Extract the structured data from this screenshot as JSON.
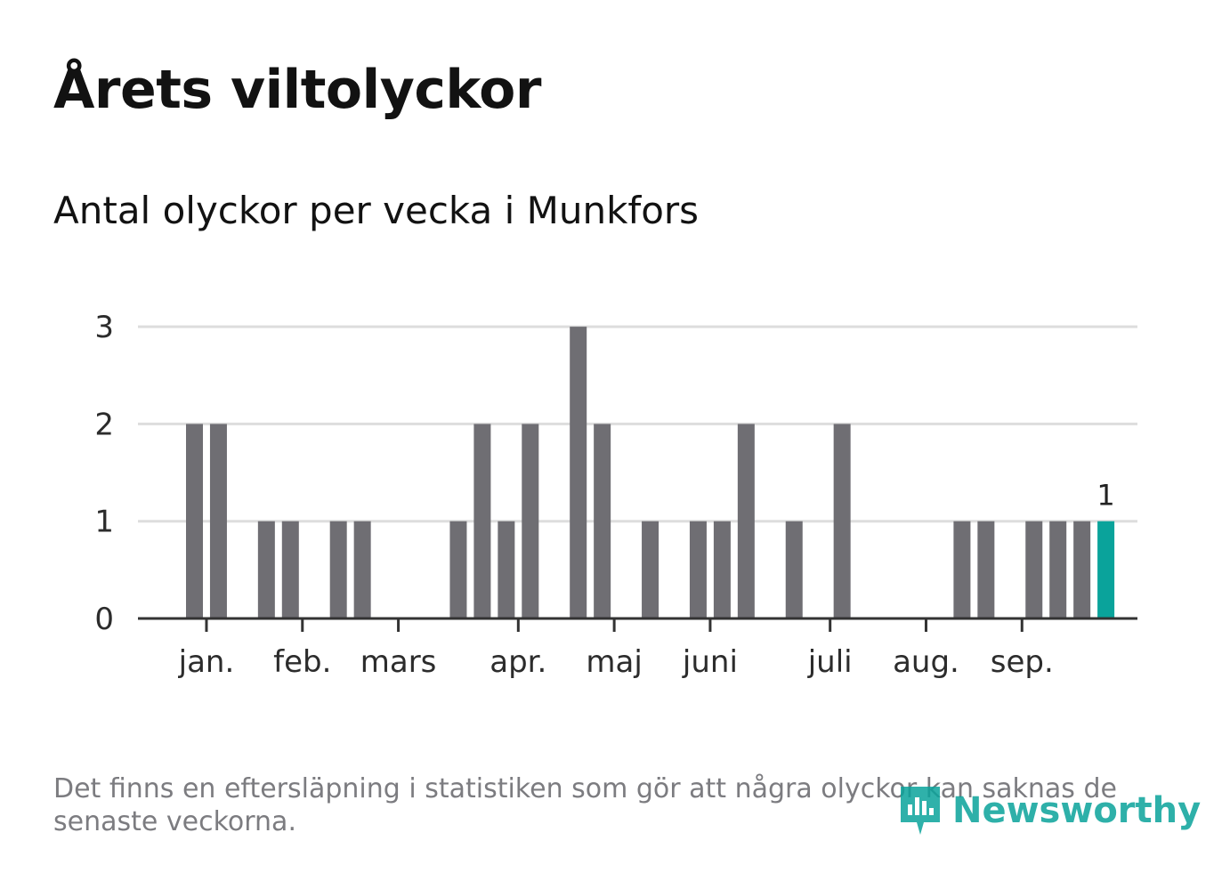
{
  "title": "Årets viltolyckor",
  "subtitle": "Antal olyckor per vecka i Munkfors",
  "note": "Det finns en eftersläpning i statistiken som gör att några olyckor kan saknas de senaste veckorna.",
  "logo_text": "Newsworthy",
  "colors": {
    "bar": "#6f6e73",
    "highlight": "#0aa39b",
    "grid": "#dddddd",
    "axis": "#333333"
  },
  "chart_data": {
    "type": "bar",
    "title": "Årets viltolyckor",
    "subtitle": "Antal olyckor per vecka i Munkfors",
    "xlabel": "",
    "ylabel": "",
    "ylim": [
      0,
      3
    ],
    "yticks": [
      0,
      1,
      2,
      3
    ],
    "grid": true,
    "x_unit": "week",
    "weeks": [
      1,
      2,
      3,
      4,
      5,
      6,
      7,
      8,
      9,
      10,
      11,
      12,
      13,
      14,
      15,
      16,
      17,
      18,
      19,
      20,
      21,
      22,
      23,
      24,
      25,
      26,
      27,
      28,
      29,
      30,
      31,
      32,
      33,
      34,
      35,
      36,
      37,
      38,
      39
    ],
    "values": [
      2,
      2,
      0,
      1,
      1,
      0,
      1,
      1,
      0,
      0,
      0,
      1,
      2,
      1,
      2,
      0,
      3,
      2,
      0,
      1,
      0,
      1,
      1,
      2,
      0,
      1,
      0,
      2,
      0,
      0,
      0,
      0,
      1,
      1,
      0,
      1,
      1,
      1,
      1
    ],
    "highlight_week": 39,
    "highlight_label": "1",
    "month_ticks": [
      {
        "label": "jan.",
        "week": 1.5
      },
      {
        "label": "feb.",
        "week": 5.5
      },
      {
        "label": "mars",
        "week": 9.5
      },
      {
        "label": "apr.",
        "week": 14.5
      },
      {
        "label": "maj",
        "week": 18.5
      },
      {
        "label": "juni",
        "week": 22.5
      },
      {
        "label": "juli",
        "week": 27.5
      },
      {
        "label": "aug.",
        "week": 31.5
      },
      {
        "label": "sep.",
        "week": 35.5
      }
    ]
  }
}
